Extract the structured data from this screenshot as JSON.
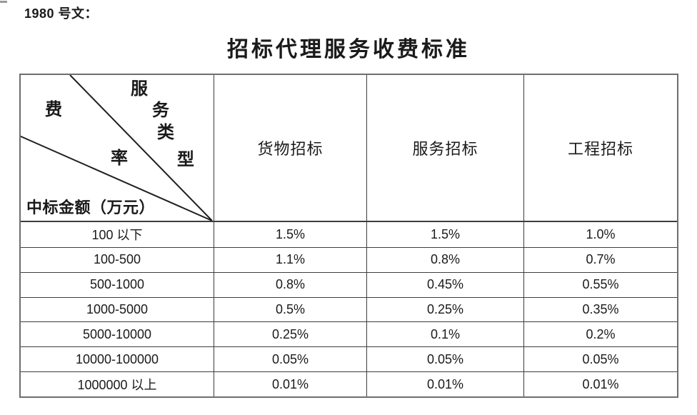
{
  "page": {
    "doc_ref": "1980 号文：",
    "title": "招标代理服务收费标准"
  },
  "table": {
    "corner": {
      "service_type_chars": [
        "服",
        "务",
        "类",
        "型"
      ],
      "fee_rate_chars": [
        "费",
        "率"
      ],
      "amount_label": "中标金额（万元）"
    },
    "column_headers": [
      "货物招标",
      "服务招标",
      "工程招标"
    ],
    "rows": [
      {
        "range": "100 以下",
        "values": [
          "1.5%",
          "1.5%",
          "1.0%"
        ]
      },
      {
        "range": "100-500",
        "values": [
          "1.1%",
          "0.8%",
          "0.7%"
        ]
      },
      {
        "range": "500-1000",
        "values": [
          "0.8%",
          "0.45%",
          "0.55%"
        ]
      },
      {
        "range": "1000-5000",
        "values": [
          "0.5%",
          "0.25%",
          "0.35%"
        ]
      },
      {
        "range": "5000-10000",
        "values": [
          "0.25%",
          "0.1%",
          "0.2%"
        ]
      },
      {
        "range": "10000-100000",
        "values": [
          "0.05%",
          "0.05%",
          "0.05%"
        ]
      },
      {
        "range": "1000000 以上",
        "values": [
          "0.01%",
          "0.01%",
          "0.01%"
        ]
      }
    ]
  },
  "colors": {
    "background": "#ffffff",
    "text": "#1a1a1a",
    "inner_border": "#3d3d3d",
    "outer_border": "#6e6e6e"
  }
}
